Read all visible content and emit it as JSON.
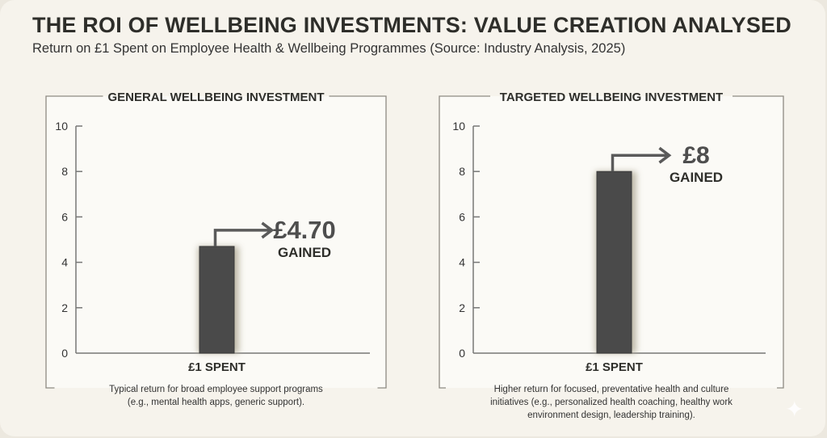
{
  "title": "THE ROI OF WELLBEING INVESTMENTS: VALUE CREATION ANALYSED",
  "subtitle": "Return on £1 Spent on Employee Health & Wellbeing Programmes (Source: Industry Analysis, 2025)",
  "colors": {
    "background": "#f6f3ec",
    "panel": "#fbfaf6",
    "bar": "#4a4a4a",
    "text": "#2e2e2a",
    "arrow": "#5a5a5a"
  },
  "icons": {
    "corner": "sparkle-icon"
  },
  "chart_data": [
    {
      "type": "bar",
      "title": "GENERAL WELLBEING INVESTMENT",
      "categories": [
        "£1 SPENT"
      ],
      "values": [
        4.7
      ],
      "ylim": [
        0,
        10
      ],
      "yticks": [
        "0",
        "2",
        "4",
        "6",
        "8",
        "10"
      ],
      "grid": false,
      "annotation": {
        "value": "£4.70",
        "label": "GAINED"
      },
      "caption": [
        "Typical return for broad employee support programs",
        "(e.g., mental health apps, generic support)."
      ]
    },
    {
      "type": "bar",
      "title": "TARGETED WELLBEING INVESTMENT",
      "categories": [
        "£1 SPENT"
      ],
      "values": [
        8
      ],
      "ylim": [
        0,
        10
      ],
      "yticks": [
        "0",
        "2",
        "4",
        "6",
        "8",
        "10"
      ],
      "grid": false,
      "annotation": {
        "value": "£8",
        "label": "GAINED"
      },
      "caption": [
        "Higher return for focused, preventative health and culture",
        "initiatives (e.g., personalized health coaching, healthy work",
        "environment design, leadership training)."
      ]
    }
  ]
}
